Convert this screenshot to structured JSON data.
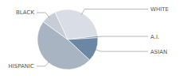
{
  "chart_data": {
    "type": "pie",
    "categories": [
      "WHITE",
      "A.I.",
      "ASIAN",
      "HISPANIC",
      "BLACK"
    ],
    "values": [
      30,
      1,
      13,
      48,
      8
    ],
    "colors": [
      "#d9dee6",
      "#8a9cb0",
      "#6b87a4",
      "#a8b4c1",
      "#c6cdd7"
    ]
  }
}
